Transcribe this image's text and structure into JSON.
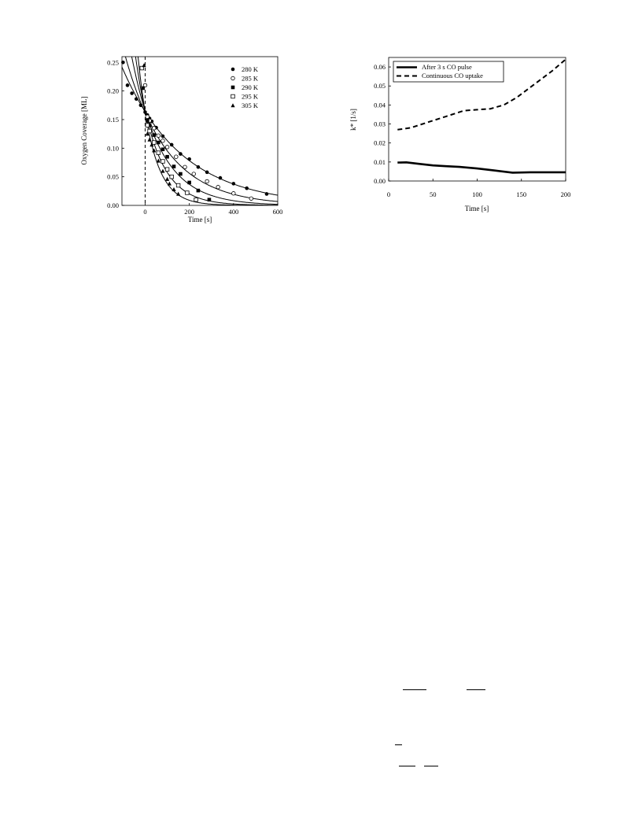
{
  "chart_data": [
    {
      "type": "scatter",
      "xlabel": "Time [s]",
      "ylabel": "Oxygen Coverage [ML]",
      "xlim": [
        -105,
        600
      ],
      "ylim": [
        0,
        0.26
      ],
      "x_ticks": [
        0,
        200,
        400,
        600
      ],
      "y_ticks": [
        0.0,
        0.05,
        0.1,
        0.15,
        0.2,
        0.25
      ],
      "x_tick_labels": [
        "0",
        "200",
        "400",
        "600"
      ],
      "y_tick_labels": [
        "0.00",
        "0.05",
        "0.10",
        "0.15",
        "0.20",
        "0.25"
      ],
      "vline_x": 0,
      "legend_position": "top-right",
      "series": [
        {
          "name": "280 K",
          "marker": "circle-filled",
          "fit": {
            "A": 0.164,
            "k": 0.0037
          },
          "x": [
            -100,
            -80,
            -60,
            -40,
            -20,
            0,
            10,
            20,
            30,
            50,
            80,
            120,
            160,
            200,
            240,
            280,
            340,
            400,
            460,
            550
          ],
          "y": [
            0.25,
            0.21,
            0.196,
            0.186,
            0.175,
            0.163,
            0.158,
            0.152,
            0.147,
            0.136,
            0.121,
            0.106,
            0.09,
            0.081,
            0.067,
            0.058,
            0.048,
            0.038,
            0.03,
            0.02
          ]
        },
        {
          "name": "285 K",
          "marker": "circle-open",
          "fit": {
            "A": 0.162,
            "k": 0.0053
          },
          "x": [
            0,
            10,
            20,
            40,
            60,
            80,
            100,
            140,
            180,
            220,
            280,
            330,
            400,
            480
          ],
          "y": [
            0.21,
            0.155,
            0.148,
            0.135,
            0.122,
            0.113,
            0.102,
            0.085,
            0.067,
            0.055,
            0.042,
            0.032,
            0.021,
            0.012
          ]
        },
        {
          "name": "290 K",
          "marker": "square-filled",
          "fit": {
            "A": 0.165,
            "k": 0.0075
          },
          "x": [
            -10,
            10,
            20,
            40,
            60,
            80,
            100,
            130,
            160,
            200,
            240,
            290
          ],
          "y": [
            0.205,
            0.148,
            0.14,
            0.123,
            0.11,
            0.098,
            0.085,
            0.068,
            0.055,
            0.04,
            0.026,
            0.01
          ]
        },
        {
          "name": "295 K",
          "marker": "square-open",
          "fit": {
            "A": 0.165,
            "k": 0.0105
          },
          "x": [
            -15,
            10,
            20,
            40,
            60,
            80,
            100,
            120,
            150,
            190,
            230
          ],
          "y": [
            0.24,
            0.14,
            0.13,
            0.11,
            0.092,
            0.077,
            0.063,
            0.05,
            0.035,
            0.022,
            0.01
          ]
        },
        {
          "name": "305 K",
          "marker": "triangle-filled",
          "fit": {
            "A": 0.163,
            "k": 0.0145
          },
          "x": [
            -5,
            10,
            20,
            30,
            40,
            60,
            80,
            100,
            110,
            130,
            150
          ],
          "y": [
            0.245,
            0.125,
            0.115,
            0.106,
            0.096,
            0.078,
            0.06,
            0.046,
            0.038,
            0.028,
            0.02
          ]
        }
      ]
    },
    {
      "type": "line",
      "xlabel": "Time [s]",
      "ylabel": "k* [1/s]",
      "xlim": [
        0,
        200
      ],
      "ylim": [
        0,
        0.065
      ],
      "x_ticks": [
        0,
        50,
        100,
        150,
        200
      ],
      "y_ticks": [
        0.0,
        0.01,
        0.02,
        0.03,
        0.04,
        0.05,
        0.06
      ],
      "x_tick_labels": [
        "0",
        "50",
        "100",
        "150",
        "200"
      ],
      "y_tick_labels": [
        "0.00",
        "0.01",
        "0.02",
        "0.03",
        "0.04",
        "0.05",
        "0.06"
      ],
      "legend_position": "top-left",
      "series": [
        {
          "name": "After 3 s CO pulse",
          "style": "solid",
          "x": [
            10,
            20,
            35,
            50,
            65,
            80,
            100,
            120,
            140,
            160,
            180,
            200
          ],
          "y": [
            0.0097,
            0.0098,
            0.009,
            0.0082,
            0.0078,
            0.0074,
            0.0066,
            0.0055,
            0.0044,
            0.0046,
            0.0046,
            0.0046
          ]
        },
        {
          "name": "Continuous CO uptake",
          "style": "dashed",
          "x": [
            10,
            25,
            45,
            65,
            85,
            100,
            115,
            130,
            145,
            165,
            185,
            200
          ],
          "y": [
            0.027,
            0.028,
            0.031,
            0.034,
            0.037,
            0.0375,
            0.038,
            0.04,
            0.044,
            0.051,
            0.058,
            0.064
          ]
        }
      ]
    }
  ]
}
